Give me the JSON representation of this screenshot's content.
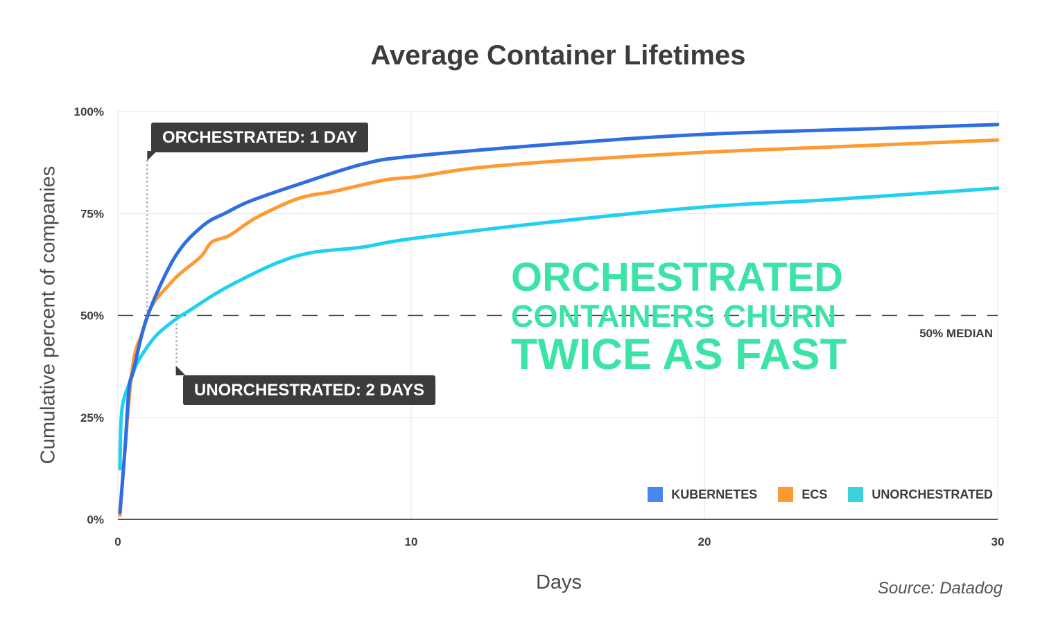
{
  "chart_data": {
    "type": "line",
    "title": "Average Container Lifetimes",
    "xlabel": "Days",
    "ylabel": "Cumulative percent of companies",
    "xlim": [
      0,
      30
    ],
    "ylim": [
      0,
      100
    ],
    "x_ticks": [
      "0",
      "10",
      "20",
      "30"
    ],
    "y_ticks": [
      "0%",
      "25%",
      "50%",
      "75%",
      "100%"
    ],
    "grid": true,
    "legend_position": "bottom-right",
    "reference_line": {
      "y": 50,
      "label": "50% MEDIAN",
      "style": "dashed"
    },
    "series": [
      {
        "name": "KUBERNETES",
        "color": "#2f6ee0",
        "legend_color": "#4a86f0",
        "x": [
          0.07,
          0.24,
          0.38,
          0.54,
          1.02,
          1.96,
          2.9,
          3.7,
          4.5,
          6.1,
          8.3,
          10,
          14.9,
          20,
          26.7,
          30
        ],
        "y": [
          1.7,
          17,
          32,
          36.8,
          50,
          64.5,
          72,
          75.2,
          78,
          82,
          87,
          89,
          92,
          94.4,
          96,
          96.8
        ]
      },
      {
        "name": "ECS",
        "color": "#ff9a33",
        "legend_color": "#ff9a33",
        "x": [
          0.07,
          0.47,
          0.83,
          1.18,
          1.77,
          2.13,
          2.84,
          3.2,
          3.8,
          4.7,
          5.9,
          6.6,
          7.3,
          9.1,
          10.2,
          12,
          14.9,
          20,
          24.3,
          30
        ],
        "y": [
          1,
          35.7,
          45.8,
          52.6,
          57.7,
          60.3,
          64.5,
          68,
          69.6,
          73.9,
          78,
          79.5,
          80.3,
          83.2,
          84,
          86,
          87.8,
          90,
          91.3,
          93
        ]
      },
      {
        "name": "UNORCHESTRATED",
        "color": "#1fd0f0",
        "legend_color": "#3ad3dd",
        "x": [
          0.07,
          0.14,
          0.47,
          0.71,
          1.3,
          2,
          2.4,
          3.3,
          4,
          5.4,
          6.6,
          8.3,
          10,
          14.9,
          20,
          24.3,
          30
        ],
        "y": [
          12.4,
          27,
          34.8,
          39,
          45,
          49.2,
          51,
          55.2,
          58,
          62.8,
          65.4,
          66.7,
          68.8,
          73,
          76.6,
          78.4,
          81.2
        ]
      }
    ],
    "annotations": [
      {
        "text": "ORCHESTRATED: 1 DAY",
        "x": 1,
        "y": 50
      },
      {
        "text": "UNORCHESTRATED: 2 DAYS",
        "x": 2,
        "y": 50
      }
    ],
    "headline": [
      "ORCHESTRATED",
      "CONTAINERS CHURN",
      "TWICE AS FAST"
    ],
    "headline_color": "#3ce3a6",
    "source": "Source: Datadog"
  }
}
